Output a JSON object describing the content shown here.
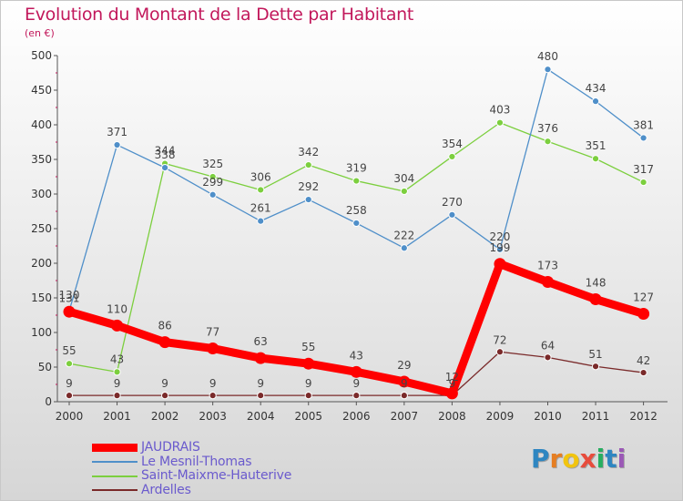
{
  "title": "Evolution du Montant de la Dette par Habitant",
  "unit": "(en €)",
  "chart_data": {
    "type": "line",
    "x": [
      "2000",
      "2001",
      "2002",
      "2003",
      "2004",
      "2005",
      "2006",
      "2007",
      "2008",
      "2009",
      "2010",
      "2011",
      "2012"
    ],
    "ylim": [
      0,
      500
    ],
    "yticks": [
      0,
      50,
      100,
      150,
      200,
      250,
      300,
      350,
      400,
      450,
      500
    ],
    "grid": false,
    "legend_position": "bottom-left",
    "series": [
      {
        "name": "JAUDRAIS",
        "color": "#ff0000",
        "values": [
          130,
          110,
          86,
          77,
          63,
          55,
          43,
          29,
          12,
          199,
          173,
          148,
          127
        ],
        "labels": [
          "130",
          "110",
          "86",
          "77",
          "63",
          "55",
          "43",
          "29",
          "12",
          "199",
          "173",
          "148",
          "127"
        ]
      },
      {
        "name": "Le Mesnil-Thomas",
        "color": "#4f8fc9",
        "values": [
          131,
          371,
          338,
          299,
          261,
          292,
          258,
          222,
          270,
          220,
          480,
          434,
          381
        ],
        "labels": [
          "131",
          "371",
          "338",
          "299",
          "261",
          "292",
          "258",
          "222",
          "270",
          "220",
          "480",
          "434",
          "381"
        ]
      },
      {
        "name": "Saint-Maixme-Hauterive",
        "color": "#7ccf3e",
        "values": [
          55,
          43,
          344,
          325,
          306,
          342,
          319,
          304,
          354,
          403,
          376,
          351,
          317
        ],
        "labels": [
          "55",
          "43",
          "344",
          "325",
          "306",
          "342",
          "319",
          "304",
          "354",
          "403",
          "376",
          "351",
          "317"
        ]
      },
      {
        "name": "Ardelles",
        "color": "#7a2a2a",
        "values": [
          9,
          9,
          9,
          9,
          9,
          9,
          9,
          9,
          9,
          72,
          64,
          51,
          42
        ],
        "labels": [
          "9",
          "9",
          "9",
          "9",
          "9",
          "9",
          "9",
          "9",
          "9",
          "72",
          "64",
          "51",
          "42"
        ]
      }
    ]
  },
  "logo": {
    "text": "Proxiti",
    "letters": [
      {
        "ch": "P",
        "color": "#2e86c1"
      },
      {
        "ch": "r",
        "color": "#e67e22"
      },
      {
        "ch": "o",
        "color": "#f1c40f"
      },
      {
        "ch": "x",
        "color": "#e74c3c"
      },
      {
        "ch": "i",
        "color": "#27ae60"
      },
      {
        "ch": "t",
        "color": "#2e86c1"
      },
      {
        "ch": "i",
        "color": "#9b59b6"
      }
    ]
  }
}
